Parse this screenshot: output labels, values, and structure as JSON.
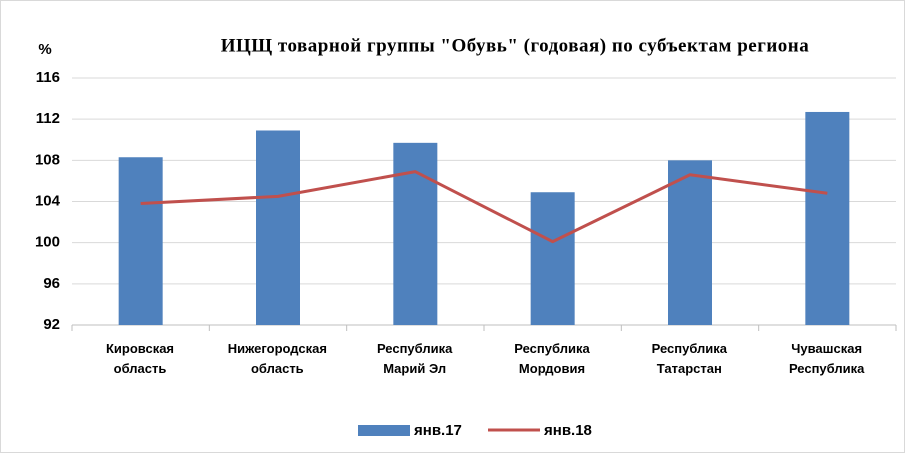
{
  "chart_data": {
    "type": "bar",
    "title": "ИЦЩ товарной группы \"Обувь\"  (годовая) по субъектам региона",
    "y_label": "%",
    "categories": [
      "Кировская\nобласть",
      "Нижегородская\nобласть",
      "Республика\nМарий Эл",
      "Республика\nМордовия",
      "Республика\nТатарстан",
      "Чувашская\nРеспублика"
    ],
    "series": [
      {
        "name": "янв.17",
        "type": "bar",
        "color": "#4f81bd",
        "values": [
          108.3,
          110.9,
          109.7,
          104.9,
          108.0,
          112.7
        ]
      },
      {
        "name": "янв.18",
        "type": "line",
        "color": "#c0504d",
        "values": [
          103.8,
          104.5,
          106.9,
          100.1,
          106.6,
          104.8
        ]
      }
    ],
    "ylim": [
      92,
      116
    ],
    "yticks": [
      92,
      96,
      100,
      104,
      108,
      112,
      116
    ],
    "grid": true,
    "legend": "bottom"
  }
}
